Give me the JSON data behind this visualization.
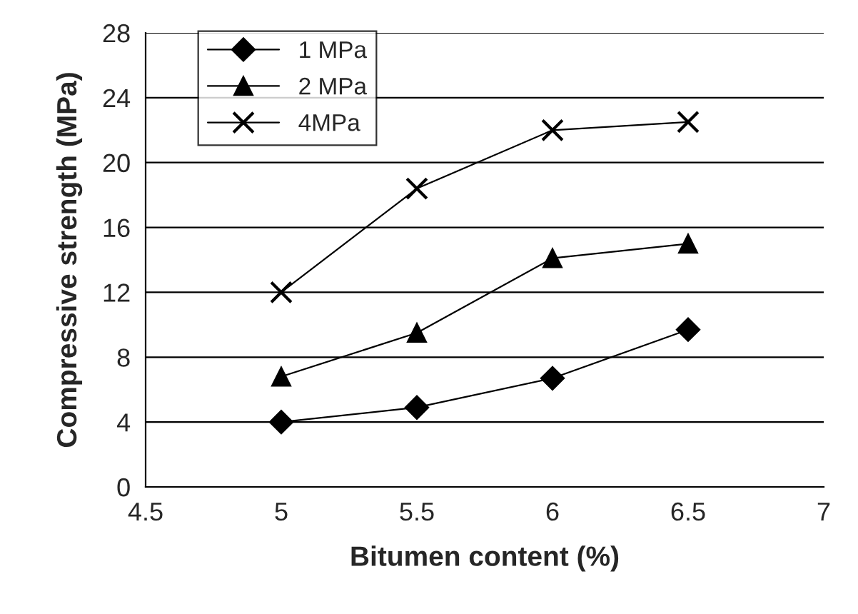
{
  "chart_data": {
    "type": "line",
    "xlabel": "Bitumen content (%)",
    "ylabel": "Compressive strength (MPa)",
    "x": [
      5,
      5.5,
      6,
      6.5
    ],
    "series": [
      {
        "name": "1 MPa",
        "color": "#000000",
        "marker": "diamond",
        "values": [
          4,
          4.9,
          6.7,
          9.7
        ]
      },
      {
        "name": "2 MPa",
        "color": "#000000",
        "marker": "triangle",
        "values": [
          6.8,
          9.5,
          14.1,
          15
        ]
      },
      {
        "name": "4MPa",
        "color": "#000000",
        "marker": "cross",
        "values": [
          12,
          18.4,
          22,
          22.5
        ]
      }
    ],
    "xlim": [
      4.5,
      7
    ],
    "xticks": [
      4.5,
      5,
      5.5,
      6,
      6.5,
      7
    ],
    "ylim": [
      0,
      28
    ],
    "yticks": [
      0,
      4,
      8,
      12,
      16,
      20,
      24,
      28
    ],
    "grid": "y",
    "legend": "top left",
    "line_style": "solid"
  }
}
